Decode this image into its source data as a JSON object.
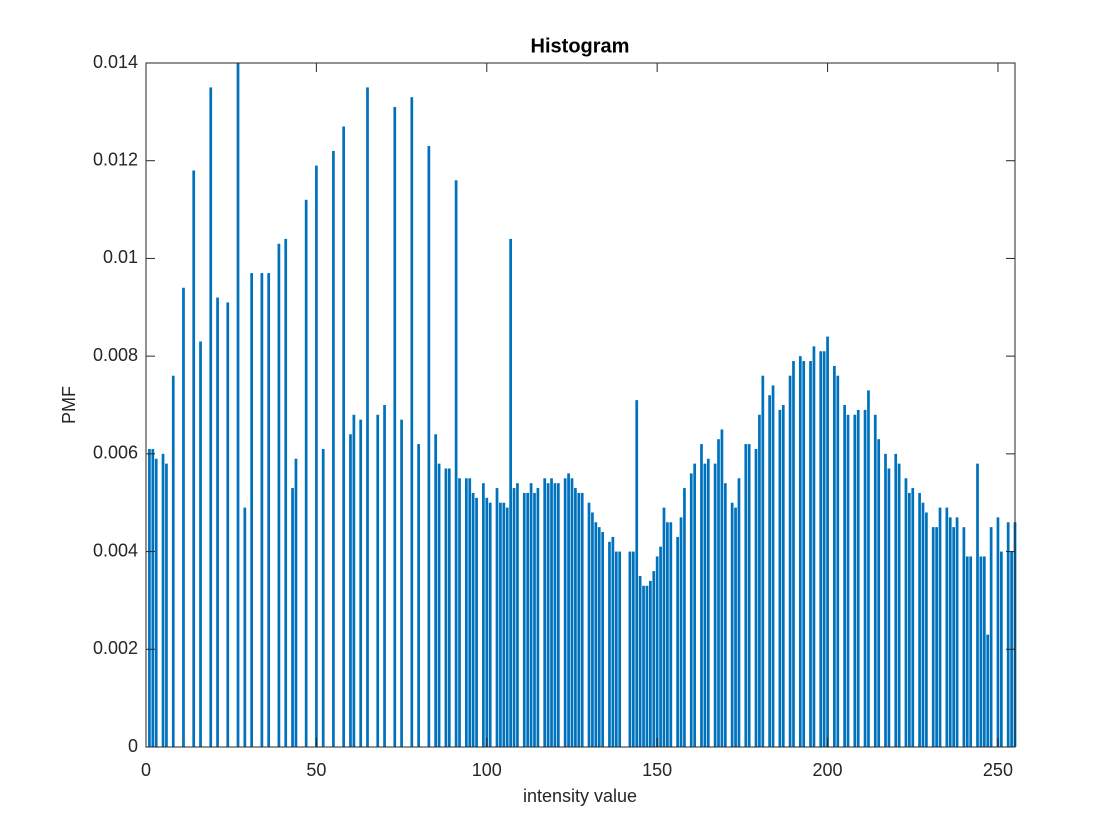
{
  "chart_data": {
    "type": "bar",
    "title": "Histogram",
    "x_label": "intensity value",
    "y_label": "PMF",
    "color": "#0072bd",
    "x": [
      0,
      1,
      2,
      3,
      4,
      5,
      6,
      7,
      8,
      9,
      10,
      11,
      12,
      13,
      14,
      15,
      16,
      17,
      18,
      19,
      20,
      21,
      22,
      23,
      24,
      25,
      26,
      27,
      28,
      29,
      30,
      31,
      32,
      33,
      34,
      35,
      36,
      37,
      38,
      39,
      40,
      41,
      42,
      43,
      44,
      45,
      46,
      47,
      48,
      49,
      50,
      51,
      52,
      53,
      54,
      55,
      56,
      57,
      58,
      59,
      60,
      61,
      62,
      63,
      64,
      65,
      66,
      67,
      68,
      69,
      70,
      71,
      72,
      73,
      74,
      75,
      76,
      77,
      78,
      79,
      80,
      81,
      82,
      83,
      84,
      85,
      86,
      87,
      88,
      89,
      90,
      91,
      92,
      93,
      94,
      95,
      96,
      97,
      98,
      99,
      100,
      101,
      102,
      103,
      104,
      105,
      106,
      107,
      108,
      109,
      110,
      111,
      112,
      113,
      114,
      115,
      116,
      117,
      118,
      119,
      120,
      121,
      122,
      123,
      124,
      125,
      126,
      127,
      128,
      129,
      130,
      131,
      132,
      133,
      134,
      135,
      136,
      137,
      138,
      139,
      140,
      141,
      142,
      143,
      144,
      145,
      146,
      147,
      148,
      149,
      150,
      151,
      152,
      153,
      154,
      155,
      156,
      157,
      158,
      159,
      160,
      161,
      162,
      163,
      164,
      165,
      166,
      167,
      168,
      169,
      170,
      171,
      172,
      173,
      174,
      175,
      176,
      177,
      178,
      179,
      180,
      181,
      182,
      183,
      184,
      185,
      186,
      187,
      188,
      189,
      190,
      191,
      192,
      193,
      194,
      195,
      196,
      197,
      198,
      199,
      200,
      201,
      202,
      203,
      204,
      205,
      206,
      207,
      208,
      209,
      210,
      211,
      212,
      213,
      214,
      215,
      216,
      217,
      218,
      219,
      220,
      221,
      222,
      223,
      224,
      225,
      226,
      227,
      228,
      229,
      230,
      231,
      232,
      233,
      234,
      235,
      236,
      237,
      238,
      239,
      240,
      241,
      242,
      243,
      244,
      245,
      246,
      247,
      248,
      249,
      250,
      251,
      252,
      253,
      254,
      255
    ],
    "values": [
      0,
      0.0061,
      0.0061,
      0.0059,
      0,
      0.006,
      0.0058,
      0,
      0.0076,
      0,
      0,
      0.0094,
      0,
      0,
      0.0118,
      0,
      0.0083,
      0,
      0,
      0.0135,
      0,
      0.0092,
      0,
      0,
      0.0091,
      0,
      0,
      0.014,
      0,
      0.0049,
      0,
      0.0097,
      0,
      0,
      0.0097,
      0,
      0.0097,
      0,
      0,
      0.0103,
      0,
      0.0104,
      0,
      0.0053,
      0.0059,
      0,
      0,
      0.0112,
      0,
      0,
      0.0119,
      0,
      0.0061,
      0,
      0,
      0.0122,
      0,
      0,
      0.0127,
      0,
      0.0064,
      0.0068,
      0,
      0.0067,
      0,
      0.0135,
      0,
      0,
      0.0068,
      0,
      0.007,
      0,
      0,
      0.0131,
      0,
      0.0067,
      0,
      0,
      0.0133,
      0,
      0.0062,
      0,
      0,
      0.0123,
      0,
      0.0064,
      0.0058,
      0,
      0.0057,
      0.0057,
      0,
      0.0116,
      0.0055,
      0,
      0.0055,
      0.0055,
      0.0052,
      0.0051,
      0,
      0.0054,
      0.0051,
      0.005,
      0,
      0.0053,
      0.005,
      0.005,
      0.0049,
      0.0104,
      0.0053,
      0.0054,
      0,
      0.0052,
      0.0052,
      0.0054,
      0.0052,
      0.0053,
      0,
      0.0055,
      0.0054,
      0.0055,
      0.0054,
      0.0054,
      0,
      0.0055,
      0.0056,
      0.0055,
      0.0053,
      0.0052,
      0.0052,
      0,
      0.005,
      0.0048,
      0.0046,
      0.0045,
      0.0044,
      0,
      0.0042,
      0.0043,
      0.004,
      0.004,
      0,
      0,
      0.004,
      0.004,
      0.0071,
      0.0035,
      0.0033,
      0.0033,
      0.0034,
      0.0036,
      0.0039,
      0.0041,
      0.0049,
      0.0046,
      0.0046,
      0,
      0.0043,
      0.0047,
      0.0053,
      0,
      0.0056,
      0.0058,
      0,
      0.0062,
      0.0058,
      0.0059,
      0,
      0.0058,
      0.0063,
      0.0065,
      0.0054,
      0,
      0.005,
      0.0049,
      0.0055,
      0,
      0.0062,
      0.0062,
      0,
      0.0061,
      0.0068,
      0.0076,
      0,
      0.0072,
      0.0074,
      0,
      0.0069,
      0.007,
      0,
      0.0076,
      0.0079,
      0,
      0.008,
      0.0079,
      0,
      0.0079,
      0.0082,
      0,
      0.0081,
      0.0081,
      0.0084,
      0,
      0.0078,
      0.0076,
      0,
      0.007,
      0.0068,
      0,
      0.0068,
      0.0069,
      0,
      0.0069,
      0.0073,
      0,
      0.0068,
      0.0063,
      0,
      0.006,
      0.0057,
      0,
      0.006,
      0.0058,
      0,
      0.0055,
      0.0052,
      0.0053,
      0,
      0.0052,
      0.005,
      0.0048,
      0,
      0.0045,
      0.0045,
      0.0049,
      0,
      0.0049,
      0.0047,
      0.0045,
      0.0047,
      0,
      0.0045,
      0.0039,
      0.0039,
      0,
      0.0058,
      0.0039,
      0.0039,
      0.0023,
      0.0045,
      0,
      0.0047,
      0.004,
      0,
      0.0046,
      0.004,
      0.0046
    ],
    "xlim": [
      0,
      255
    ],
    "xticks": [
      0,
      50,
      100,
      150,
      200,
      250
    ],
    "ylim": [
      0,
      0.014
    ],
    "yticks": [
      0,
      0.002,
      0.004,
      0.006,
      0.008,
      0.01,
      0.012,
      0.014
    ]
  }
}
